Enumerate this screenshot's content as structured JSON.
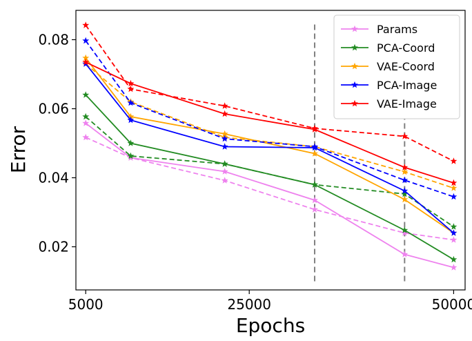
{
  "chart_data": {
    "type": "line",
    "title": "",
    "xlabel": "Epochs",
    "ylabel": "Error",
    "xlim": [
      3800,
      51400
    ],
    "ylim": [
      0.0075,
      0.0885
    ],
    "x_ticks": [
      5000,
      25000,
      50000
    ],
    "x_tick_labels": [
      "5000",
      "25000",
      "50000"
    ],
    "y_ticks": [
      0.02,
      0.04,
      0.06,
      0.08
    ],
    "y_tick_labels": [
      "0.02",
      "0.04",
      "0.06",
      "0.08"
    ],
    "grid": false,
    "legend_position": "top-right",
    "marker": "star",
    "vertical_lines": [
      {
        "x": 33000,
        "y_range": [
          0.01,
          0.085
        ],
        "color": "#808080",
        "style": "dashed"
      },
      {
        "x": 44000,
        "y_range": [
          0.01,
          0.085
        ],
        "color": "#808080",
        "style": "dashed"
      }
    ],
    "x": [
      5000,
      10500,
      22000,
      33000,
      44000,
      50000
    ],
    "series": [
      {
        "name": "Params",
        "color": "#ee82ee",
        "solid": [
          0.0558,
          0.0458,
          0.0418,
          0.0335,
          0.0178,
          0.014
        ],
        "dashed": [
          0.0517,
          0.0458,
          0.0392,
          0.0308,
          0.024,
          0.022
        ]
      },
      {
        "name": "PCA-Coord",
        "color": "#228b22",
        "solid": [
          0.064,
          0.05,
          0.044,
          0.038,
          0.0248,
          0.0163
        ],
        "dashed": [
          0.0577,
          0.0463,
          0.044,
          0.038,
          0.0353,
          0.0258
        ]
      },
      {
        "name": "VAE-Coord",
        "color": "#ffa500",
        "solid": [
          0.0747,
          0.0577,
          0.0527,
          0.047,
          0.0337,
          0.024
        ],
        "dashed": [
          0.073,
          0.062,
          0.0517,
          0.049,
          0.0417,
          0.037
        ]
      },
      {
        "name": "PCA-Image",
        "color": "#0000ff",
        "solid": [
          0.073,
          0.0567,
          0.049,
          0.0487,
          0.0362,
          0.024
        ],
        "dashed": [
          0.0797,
          0.0617,
          0.0513,
          0.049,
          0.0393,
          0.0345
        ]
      },
      {
        "name": "VAE-Image",
        "color": "#ff0000",
        "solid": [
          0.0735,
          0.0673,
          0.0585,
          0.054,
          0.043,
          0.0385
        ],
        "dashed": [
          0.0842,
          0.0657,
          0.0608,
          0.0543,
          0.052,
          0.0448
        ]
      }
    ]
  }
}
